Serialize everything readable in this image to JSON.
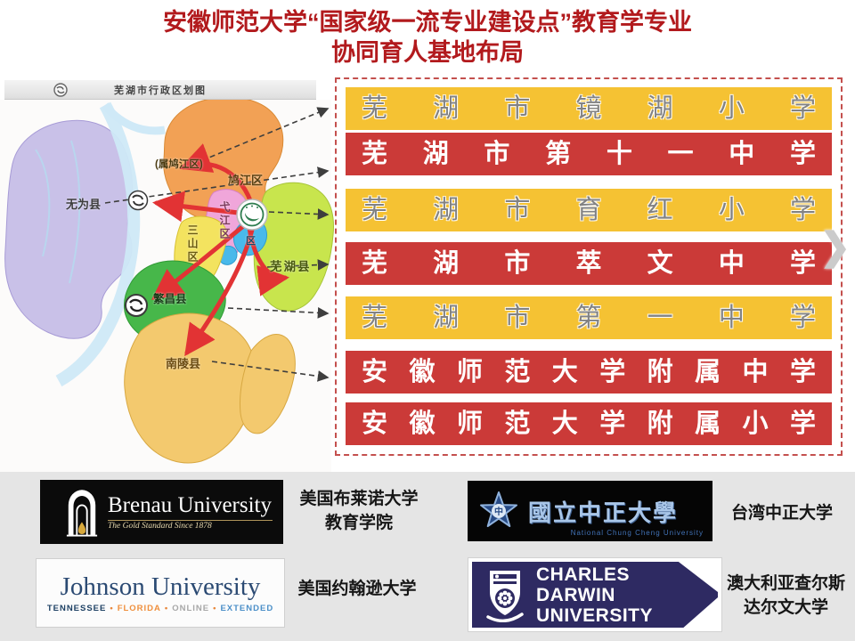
{
  "title": {
    "line1": "安徽师范大学“国家级一流专业建设点”教育学专业",
    "line2": "协同育人基地布局"
  },
  "map": {
    "header_title": "芜湖市行政区划图",
    "labels": {
      "wuwei_county": "无为县",
      "belongs_jiujiang": "(属鸠江区)",
      "jiujiang_district": "鸠江区",
      "yijiang_district": "弋江区",
      "sanshan_district": "三山区",
      "jinghu_district_short": "区",
      "wuhu_county": "芜湖县",
      "fanchang_county": "繁昌县",
      "nanling_county": "南陵县"
    }
  },
  "schools": [
    {
      "name": "芜湖市镜湖小学",
      "style": "yellow"
    },
    {
      "name": "芜湖市第十一中学",
      "style": "red"
    },
    {
      "name": "芜湖市育红小学",
      "style": "yellow"
    },
    {
      "name": "芜湖市萃文中学",
      "style": "red"
    },
    {
      "name": "芜湖市第一中学",
      "style": "yellow"
    },
    {
      "name": "安徽师范大学附属中学",
      "style": "red"
    },
    {
      "name": "安徽师范大学附属小学",
      "style": "red"
    }
  ],
  "chevron_next": "❯",
  "partners": {
    "brenau": {
      "name": "Brenau University",
      "tagline": "The Gold Standard Since 1878",
      "caption_line1": "美国布莱诺大学",
      "caption_line2": "教育学院"
    },
    "ccu": {
      "name": "國立中正大學",
      "subtext": "National Chung Cheng University",
      "star_char": "中",
      "caption_line1": "台湾中正大学"
    },
    "johnson": {
      "name": "Johnson University",
      "campuses": [
        "TENNESSEE",
        "FLORIDA",
        "ONLINE",
        "EXTENDED"
      ],
      "separator": "•",
      "caption_line1": "美国约翰逊大学"
    },
    "cdu": {
      "line1": "CHARLES",
      "line2": "DARWIN",
      "line3": "UNIVERSITY",
      "caption_line1": "澳大利亚查尔斯",
      "caption_line2": "达尔文大学"
    }
  },
  "colors": {
    "title_red": "#b21a1d",
    "banner_yellow": "#f5c233",
    "banner_red": "#cb3a38",
    "panel_dashed_border": "#c4504e",
    "arrow_red": "#e23334",
    "cdu_navy": "#2e2a62",
    "johnson_navy": "#2b4a73",
    "brenau_gold": "#b0955a",
    "bottom_band_gray": "#e5e5e5"
  }
}
